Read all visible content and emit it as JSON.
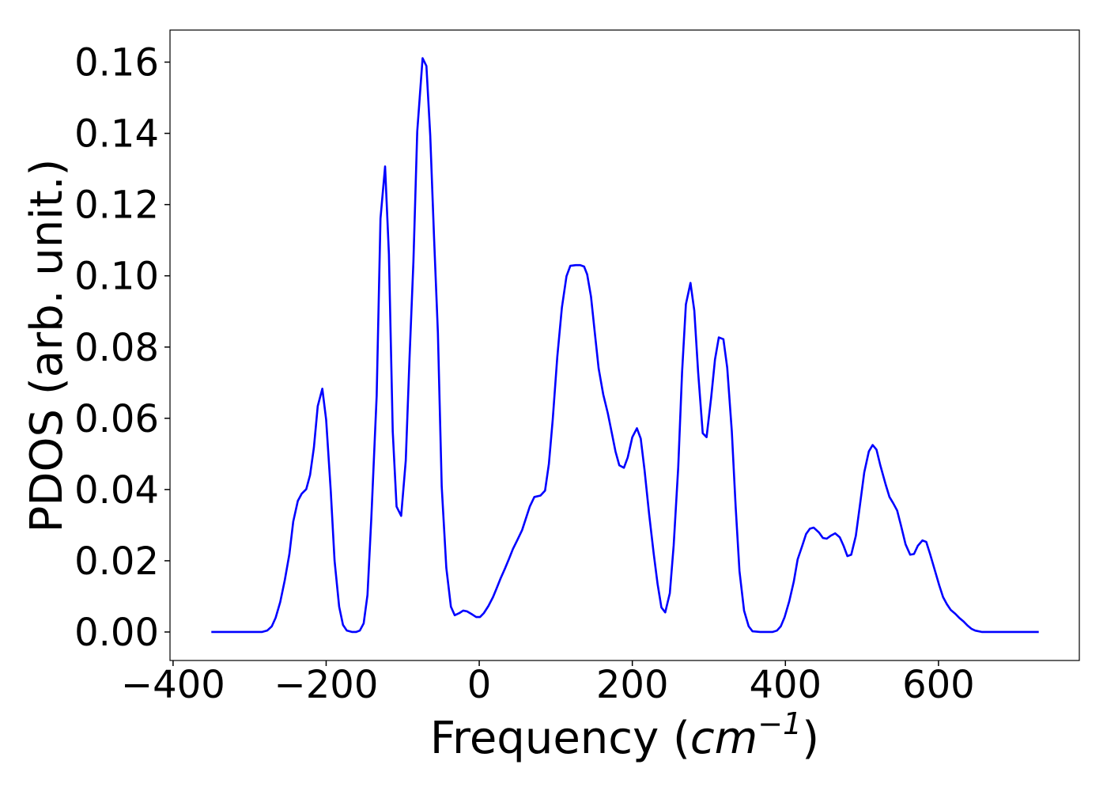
{
  "chart_data": {
    "type": "line",
    "xlabel": [
      "Frequency (",
      "cm",
      "−1",
      ")"
    ],
    "ylabel": "PDOS (arb. unit.)",
    "xlim": [
      -404,
      784
    ],
    "ylim": [
      -0.008,
      0.169
    ],
    "xticks": [
      {
        "value": -400,
        "label": "−400"
      },
      {
        "value": -200,
        "label": "−200"
      },
      0,
      200,
      400,
      600
    ],
    "yticks": [
      {
        "value": 0,
        "label": "0.00"
      },
      {
        "value": 0.02,
        "label": "0.02"
      },
      {
        "value": 0.04,
        "label": "0.04"
      },
      {
        "value": 0.06,
        "label": "0.06"
      },
      {
        "value": 0.08,
        "label": "0.08"
      },
      {
        "value": 0.1,
        "label": "0.10"
      },
      {
        "value": 0.12,
        "label": "0.12"
      },
      {
        "value": 0.14,
        "label": "0.14"
      },
      {
        "value": 0.16,
        "label": "0.16"
      }
    ],
    "x": [
      -350,
      -284,
      -277,
      -271,
      -266,
      -260,
      -254,
      -248,
      -243,
      -237,
      -232,
      -226,
      -221,
      -216,
      -211,
      -205,
      -200,
      -194,
      -189,
      -183,
      -178,
      -173,
      -166,
      -161,
      -156,
      -151,
      -146,
      -141,
      -134,
      -129,
      -123,
      -118,
      -113,
      -108,
      -102,
      -96,
      -91,
      -86,
      -81,
      -74,
      -69,
      -64,
      -59,
      -54,
      -49,
      -43,
      -37,
      -32,
      -26,
      -21,
      -16,
      -9,
      -4,
      1,
      6,
      12,
      18,
      23,
      28,
      34,
      39,
      44,
      50,
      56,
      61,
      66,
      72,
      80,
      86,
      91,
      96,
      102,
      108,
      114,
      119,
      126,
      132,
      137,
      141,
      146,
      151,
      156,
      162,
      168,
      173,
      178,
      183,
      189,
      194,
      200,
      206,
      211,
      216,
      222,
      228,
      233,
      238,
      243,
      249,
      254,
      260,
      265,
      270,
      276,
      281,
      286,
      292,
      297,
      303,
      308,
      313,
      319,
      324,
      330,
      335,
      340,
      346,
      352,
      357,
      367,
      383,
      389,
      394,
      399,
      405,
      411,
      416,
      422,
      427,
      432,
      437,
      444,
      449,
      454,
      459,
      465,
      471,
      476,
      481,
      486,
      492,
      497,
      503,
      509,
      514,
      519,
      524,
      531,
      536,
      541,
      546,
      551,
      557,
      563,
      568,
      573,
      579,
      584,
      589,
      595,
      601,
      606,
      611,
      616,
      622,
      627,
      633,
      638,
      643,
      648,
      657,
      731
    ],
    "series": [
      {
        "color": "#0000ff",
        "values": [
          0,
          0,
          0.0004,
          0.0016,
          0.004,
          0.0084,
          0.0146,
          0.0219,
          0.031,
          0.0368,
          0.0388,
          0.0401,
          0.0441,
          0.0518,
          0.0634,
          0.0683,
          0.0596,
          0.0397,
          0.02,
          0.0071,
          0.002,
          0.0004,
          0,
          0,
          0.0004,
          0.0024,
          0.0104,
          0.0319,
          0.0663,
          0.1161,
          0.1307,
          0.1061,
          0.0563,
          0.0352,
          0.0326,
          0.0481,
          0.0773,
          0.1039,
          0.1405,
          0.1611,
          0.1589,
          0.1394,
          0.1106,
          0.084,
          0.0408,
          0.018,
          0.0071,
          0.0047,
          0.0053,
          0.006,
          0.0058,
          0.0049,
          0.0042,
          0.0042,
          0.0053,
          0.0073,
          0.0098,
          0.0124,
          0.0151,
          0.018,
          0.0206,
          0.0233,
          0.0259,
          0.0286,
          0.0319,
          0.0352,
          0.0379,
          0.0383,
          0.0397,
          0.0472,
          0.0596,
          0.0773,
          0.0911,
          0.0999,
          0.1028,
          0.103,
          0.103,
          0.1026,
          0.1004,
          0.0942,
          0.084,
          0.074,
          0.0667,
          0.0614,
          0.0561,
          0.0507,
          0.0468,
          0.0461,
          0.049,
          0.0547,
          0.0572,
          0.0543,
          0.0454,
          0.033,
          0.0219,
          0.0135,
          0.0069,
          0.0055,
          0.0109,
          0.0242,
          0.0463,
          0.0729,
          0.092,
          0.098,
          0.0902,
          0.0729,
          0.0558,
          0.0547,
          0.0658,
          0.0765,
          0.0827,
          0.0822,
          0.0742,
          0.0563,
          0.0352,
          0.0171,
          0.006,
          0.0016,
          0.0002,
          0,
          0,
          0.0004,
          0.0016,
          0.0042,
          0.0086,
          0.0142,
          0.0204,
          0.0242,
          0.0275,
          0.029,
          0.0293,
          0.0279,
          0.0264,
          0.0262,
          0.027,
          0.0277,
          0.0266,
          0.0242,
          0.0213,
          0.0217,
          0.027,
          0.035,
          0.0448,
          0.0507,
          0.0525,
          0.0512,
          0.0468,
          0.0414,
          0.0379,
          0.0361,
          0.0341,
          0.0299,
          0.0246,
          0.0217,
          0.0219,
          0.0242,
          0.0257,
          0.0253,
          0.0219,
          0.0175,
          0.0131,
          0.0098,
          0.0078,
          0.0062,
          0.0051,
          0.004,
          0.0029,
          0.0018,
          0.0009,
          0.0004,
          0,
          0
        ]
      }
    ]
  }
}
